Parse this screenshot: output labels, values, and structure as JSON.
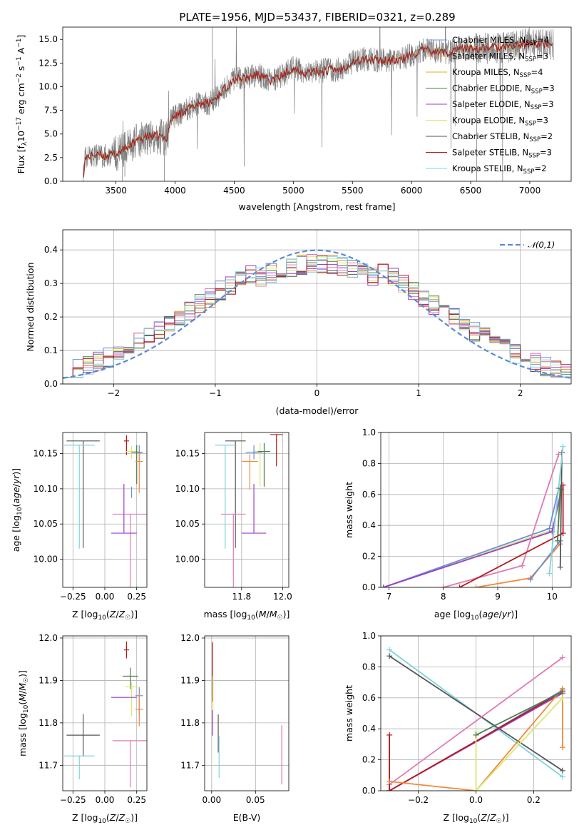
{
  "title": "PLATE=1956, MJD=53437, FIBERID=0321, z=0.289",
  "colors": {
    "chabrier_miles": "#6c8ed6",
    "salpeter_miles": "#f08a3c",
    "kroupa_miles": "#d4b52a",
    "chabrier_elodie": "#4f7a4f",
    "salpeter_elodie": "#9a3fc9",
    "kroupa_elodie": "#d8e870",
    "chabrier_stelib": "#555555",
    "salpeter_stelib": "#b51a1a",
    "kroupa_stelib": "#7fd4dc",
    "pink": "#e07ab4",
    "gauss": "#5b8ad6",
    "data": "#808080"
  },
  "chart_data": [
    {
      "type": "line",
      "id": "spectrum",
      "xlabel": "wavelength [Angstrom, rest frame]",
      "ylabel": "Flux [f_λ10^-17 erg cm^-2 s^-1 A^-1]",
      "xlim": [
        3050,
        7350
      ],
      "ylim": [
        0,
        16.3
      ],
      "xticks": [
        3500,
        4000,
        4500,
        5000,
        5500,
        6000,
        6500,
        7000
      ],
      "yticks": [
        0.0,
        2.5,
        5.0,
        7.5,
        10.0,
        12.5,
        15.0
      ],
      "spectrum_anchors": {
        "x": [
          3220,
          3240,
          3300,
          3400,
          3500,
          3560,
          3650,
          3750,
          3850,
          3930,
          3960,
          4000,
          4100,
          4200,
          4300,
          4400,
          4500,
          4600,
          4700,
          4800,
          4900,
          5000,
          5100,
          5200,
          5300,
          5400,
          5500,
          5600,
          5700,
          5800,
          5900,
          6000,
          6100,
          6200,
          6300,
          6400,
          6500,
          6600,
          6700,
          6800,
          6900,
          7000,
          7100,
          7200
        ],
        "y": [
          0.5,
          2.4,
          2.8,
          2.7,
          2.9,
          3.3,
          4.1,
          4.7,
          4.8,
          4.5,
          6.3,
          6.9,
          7.6,
          8.2,
          8.3,
          9.6,
          10.8,
          10.9,
          11.3,
          10.6,
          11.1,
          12.0,
          11.5,
          11.6,
          11.8,
          11.8,
          12.6,
          12.9,
          12.8,
          12.8,
          12.8,
          13.4,
          13.9,
          13.7,
          13.6,
          14.0,
          14.1,
          14.0,
          14.2,
          14.1,
          14.4,
          14.6,
          14.5,
          14.5
        ]
      },
      "legend": [
        {
          "label": "Chabrier MILES, N",
          "sub": "SSP",
          "eq": "=4",
          "color": "chabrier_miles"
        },
        {
          "label": "Salpeter MILES, N",
          "sub": "SSP",
          "eq": "=3",
          "color": "salpeter_miles"
        },
        {
          "label": "Kroupa MILES, N",
          "sub": "SSP",
          "eq": "=4",
          "color": "kroupa_miles"
        },
        {
          "label": "Chabrier ELODIE, N",
          "sub": "SSP",
          "eq": "=3",
          "color": "chabrier_elodie"
        },
        {
          "label": "Salpeter ELODIE, N",
          "sub": "SSP",
          "eq": "=3",
          "color": "salpeter_elodie"
        },
        {
          "label": "Kroupa ELODIE, N",
          "sub": "SSP",
          "eq": "=3",
          "color": "kroupa_elodie"
        },
        {
          "label": "Chabrier STELIB, N",
          "sub": "SSP",
          "eq": "=2",
          "color": "chabrier_stelib"
        },
        {
          "label": "Salpeter STELIB, N",
          "sub": "SSP",
          "eq": "=3",
          "color": "salpeter_stelib"
        },
        {
          "label": "Kroupa STELIB, N",
          "sub": "SSP",
          "eq": "=2",
          "color": "kroupa_stelib"
        }
      ]
    },
    {
      "type": "histogram",
      "id": "residuals",
      "xlabel": "(data-model)/error",
      "ylabel": "Normed distribution",
      "xlim": [
        -2.5,
        2.5
      ],
      "ylim": [
        0,
        0.46
      ],
      "xticks": [
        -2,
        -1,
        0,
        1,
        2
      ],
      "yticks": [
        0.0,
        0.1,
        0.2,
        0.3,
        0.4
      ],
      "bin_width": 0.1,
      "legend": "𝒩(0,1)",
      "model_colors": [
        "chabrier_miles",
        "salpeter_miles",
        "kroupa_elodie",
        "chabrier_elodie",
        "salpeter_elodie",
        "pink",
        "chabrier_stelib",
        "salpeter_stelib",
        "kroupa_stelib"
      ]
    },
    {
      "type": "errorbar",
      "id": "age_vs_Z",
      "xlabel": "Z [log10(Z/Z☉)]",
      "ylabel": "age [log10(age/yr)]",
      "xlim": [
        -0.33,
        0.33
      ],
      "ylim": [
        9.96,
        10.18
      ],
      "xticks": [
        -0.25,
        0.0,
        0.25
      ],
      "xticklabels": [
        "−0.25",
        "0.00",
        "0.25"
      ],
      "yticks": [
        10.0,
        10.05,
        10.1,
        10.15
      ],
      "yticklabels": [
        "10.00",
        "10.05",
        "10.10",
        "10.15"
      ],
      "points": [
        {
          "c": "chabrier_stelib",
          "x": -0.17,
          "xe": 0.13,
          "y": 10.168,
          "ye": 0.0,
          "yd": 0.152
        },
        {
          "c": "kroupa_stelib",
          "x": -0.2,
          "xe": 0.12,
          "y": 10.162,
          "ye": 0.0,
          "yd": 0.147
        },
        {
          "c": "salpeter_stelib",
          "x": 0.17,
          "xe": 0.02,
          "y": 10.168,
          "ye": 0.008,
          "yd": 0.02
        },
        {
          "c": "kroupa_elodie",
          "x": 0.21,
          "xe": 0.05,
          "y": 10.153,
          "ye": 0.008,
          "yd": 0.01
        },
        {
          "c": "chabrier_miles",
          "x": 0.27,
          "xe": 0.03,
          "y": 10.152,
          "ye": 0.01,
          "yd": 0.01
        },
        {
          "c": "chabrier_elodie",
          "x": 0.25,
          "xe": 0.04,
          "y": 10.152,
          "ye": 0.01,
          "yd": 0.045
        },
        {
          "c": "salpeter_miles",
          "x": 0.27,
          "xe": 0.03,
          "y": 10.139,
          "ye": 0.012,
          "yd": 0.045
        },
        {
          "c": "pink",
          "x": 0.2,
          "xe": 0.14,
          "y": 10.064,
          "ye": 0.0,
          "yd": 0.104
        },
        {
          "c": "salpeter_elodie",
          "x": 0.15,
          "xe": 0.1,
          "y": 10.037,
          "ye": 0.07,
          "yd": 0.0
        },
        {
          "c": "chabrier_miles",
          "x": 0.21,
          "xe": 0.0,
          "y": 10.095,
          "ye": 0.008,
          "yd": 0.008
        }
      ]
    },
    {
      "type": "errorbar",
      "id": "age_vs_mass",
      "xlabel": "mass [log10(M/M☉)]",
      "xlim": [
        11.62,
        12.03
      ],
      "ylim": [
        9.96,
        10.18
      ],
      "xticks": [
        11.8,
        12.0
      ],
      "xticklabels": [
        "11.8",
        "12.0"
      ],
      "yticks": [
        10.0,
        10.05,
        10.1,
        10.15
      ],
      "yticklabels": [
        "10.00",
        "10.05",
        "10.10",
        "10.15"
      ],
      "points": [
        {
          "c": "chabrier_stelib",
          "x": 11.77,
          "xe": 0.05,
          "y": 10.168,
          "ye": 0.0,
          "yd": 0.152
        },
        {
          "c": "kroupa_stelib",
          "x": 11.72,
          "xe": 0.05,
          "y": 10.162,
          "ye": 0.0,
          "yd": 0.147
        },
        {
          "c": "salpeter_stelib",
          "x": 11.97,
          "xe": 0.03,
          "y": 10.177,
          "ye": 0.0,
          "yd": 0.045
        },
        {
          "c": "kroupa_elodie",
          "x": 11.89,
          "xe": 0.03,
          "y": 10.153,
          "ye": 0.012,
          "yd": 0.05
        },
        {
          "c": "chabrier_elodie",
          "x": 11.91,
          "xe": 0.03,
          "y": 10.153,
          "ye": 0.012,
          "yd": 0.05
        },
        {
          "c": "chabrier_miles",
          "x": 11.86,
          "xe": 0.04,
          "y": 10.152,
          "ye": 0.01,
          "yd": 0.01
        },
        {
          "c": "salpeter_miles",
          "x": 11.84,
          "xe": 0.04,
          "y": 10.139,
          "ye": 0.01,
          "yd": 0.04
        },
        {
          "c": "pink",
          "x": 11.76,
          "xe": 0.06,
          "y": 10.064,
          "ye": 0.0,
          "yd": 0.104
        },
        {
          "c": "salpeter_elodie",
          "x": 11.86,
          "xe": 0.06,
          "y": 10.037,
          "ye": 0.07,
          "yd": 0.0
        }
      ]
    },
    {
      "type": "line",
      "id": "weight_vs_age",
      "xlabel": "age [log10(age/yr)]",
      "ylabel": "mass weight",
      "xlim": [
        6.85,
        10.35
      ],
      "ylim": [
        0,
        1.0
      ],
      "xticks": [
        7,
        8,
        9,
        10
      ],
      "yticks": [
        0.0,
        0.2,
        0.4,
        0.6,
        0.8,
        1.0
      ],
      "series": [
        {
          "c": "kroupa_elodie",
          "x": [
            6.9,
            10.0,
            10.17
          ],
          "y": [
            0.0,
            0.37,
            0.6
          ]
        },
        {
          "c": "chabrier_miles",
          "x": [
            6.9,
            9.95,
            10.12
          ],
          "y": [
            0.0,
            0.38,
            0.64
          ]
        },
        {
          "c": "salpeter_elodie",
          "x": [
            6.9,
            10.0,
            10.17
          ],
          "y": [
            0.0,
            0.36,
            0.63
          ]
        },
        {
          "c": "pink",
          "x": [
            8.0,
            9.45,
            10.12
          ],
          "y": [
            0.0,
            0.14,
            0.86
          ]
        },
        {
          "c": "salpeter_stelib",
          "x": [
            8.3,
            10.2
          ],
          "y": [
            0.0,
            0.35
          ]
        },
        {
          "c": "salpeter_stelib",
          "x": [
            10.2,
            10.2
          ],
          "y": [
            0.35,
            0.66
          ]
        },
        {
          "c": "salpeter_miles",
          "x": [
            8.6,
            9.6,
            10.15
          ],
          "y": [
            0.0,
            0.06,
            0.28
          ]
        },
        {
          "c": "chabrier_miles",
          "x": [
            9.6,
            10.15
          ],
          "y": [
            0.05,
            0.3
          ]
        },
        {
          "c": "chabrier_stelib",
          "x": [
            10.15,
            10.18
          ],
          "y": [
            0.13,
            0.87
          ]
        },
        {
          "c": "kroupa_stelib",
          "x": [
            9.95,
            10.2
          ],
          "y": [
            0.09,
            0.91
          ]
        },
        {
          "c": "chabrier_elodie",
          "x": [
            10.1,
            10.15
          ],
          "y": [
            0.3,
            0.64
          ]
        }
      ]
    },
    {
      "type": "errorbar",
      "id": "mass_vs_Z",
      "xlabel": "Z [log10(Z/Z☉)]",
      "ylabel": "mass [log10(M/M☉)]",
      "xlim": [
        -0.33,
        0.33
      ],
      "ylim": [
        11.64,
        12.005
      ],
      "xticks": [
        -0.25,
        0.0,
        0.25
      ],
      "xticklabels": [
        "−0.25",
        "0.00",
        "0.25"
      ],
      "yticks": [
        11.7,
        11.8,
        11.9,
        12.0
      ],
      "yticklabels": [
        "11.7",
        "11.8",
        "11.9",
        "12.0"
      ],
      "points": [
        {
          "c": "chabrier_stelib",
          "x": -0.17,
          "xe": 0.13,
          "y": 11.771,
          "ye": 0.05,
          "yd": 0.05
        },
        {
          "c": "kroupa_stelib",
          "x": -0.2,
          "xe": 0.12,
          "y": 11.722,
          "ye": 0.0,
          "yd": 0.055
        },
        {
          "c": "salpeter_stelib",
          "x": 0.17,
          "xe": 0.02,
          "y": 11.972,
          "ye": 0.02,
          "yd": 0.02
        },
        {
          "c": "chabrier_elodie",
          "x": 0.2,
          "xe": 0.06,
          "y": 11.91,
          "ye": 0.02,
          "yd": 0.03
        },
        {
          "c": "kroupa_elodie",
          "x": 0.21,
          "xe": 0.05,
          "y": 11.885,
          "ye": 0.01,
          "yd": 0.07
        },
        {
          "c": "chabrier_miles",
          "x": 0.27,
          "xe": 0.03,
          "y": 11.864,
          "ye": 0.02,
          "yd": 0.05
        },
        {
          "c": "salpeter_elodie",
          "x": 0.15,
          "xe": 0.1,
          "y": 11.86,
          "ye": 0.0,
          "yd": 0.0
        },
        {
          "c": "salpeter_miles",
          "x": 0.27,
          "xe": 0.03,
          "y": 11.832,
          "ye": 0.04,
          "yd": 0.04
        },
        {
          "c": "pink",
          "x": 0.2,
          "xe": 0.14,
          "y": 11.758,
          "ye": 0.0,
          "yd": 0.11
        }
      ]
    },
    {
      "type": "errorbar",
      "id": "mass_vs_ebv",
      "xlabel": "E(B-V)",
      "xlim": [
        -0.008,
        0.088
      ],
      "ylim": [
        11.64,
        12.005
      ],
      "xticks": [
        0.0,
        0.05
      ],
      "xticklabels": [
        "0.00",
        "0.05"
      ],
      "yticks": [
        11.7,
        11.8,
        11.9,
        12.0
      ],
      "yticklabels": [
        "11.7",
        "11.8",
        "11.9",
        "12.0"
      ],
      "vlines": [
        {
          "c": "salpeter_stelib",
          "x": 0.001,
          "y0": 11.85,
          "y1": 11.99
        },
        {
          "c": "kroupa_elodie",
          "x": 0.0015,
          "y0": 11.83,
          "y1": 11.91
        },
        {
          "c": "salpeter_elodie",
          "x": 0.001,
          "y0": 11.77,
          "y1": 11.83
        },
        {
          "c": "chabrier_stelib",
          "x": 0.0075,
          "y0": 11.73,
          "y1": 11.82
        },
        {
          "c": "kroupa_stelib",
          "x": 0.0085,
          "y0": 11.67,
          "y1": 11.77
        },
        {
          "c": "pink",
          "x": 0.08,
          "y0": 11.655,
          "y1": 11.795
        }
      ]
    },
    {
      "type": "line",
      "id": "weight_vs_Z",
      "xlabel": "Z [log10(Z/Z☉)]",
      "ylabel": "mass weight",
      "xlim": [
        -0.33,
        0.33
      ],
      "ylim": [
        0,
        1.0
      ],
      "xticks": [
        -0.2,
        0.0,
        0.2
      ],
      "xticklabels": [
        "−0.2",
        "0.0",
        "0.2"
      ],
      "yticks": [
        0.0,
        0.2,
        0.4,
        0.6,
        0.8,
        1.0
      ],
      "series": [
        {
          "c": "kroupa_stelib",
          "x": [
            -0.3,
            0.3
          ],
          "y": [
            0.91,
            0.09
          ]
        },
        {
          "c": "chabrier_stelib",
          "x": [
            -0.3,
            0.3
          ],
          "y": [
            0.87,
            0.13
          ]
        },
        {
          "c": "pink",
          "x": [
            -0.3,
            0.3
          ],
          "y": [
            0.04,
            0.86
          ]
        },
        {
          "c": "chabrier_miles",
          "x": [
            -0.3,
            0.0,
            0.3
          ],
          "y": [
            0.0,
            0.32,
            0.65
          ]
        },
        {
          "c": "salpeter_elodie",
          "x": [
            -0.3,
            0.3
          ],
          "y": [
            0.0,
            0.63
          ]
        },
        {
          "c": "salpeter_stelib",
          "x": [
            -0.3,
            -0.3,
            0.3
          ],
          "y": [
            0.36,
            0.0,
            0.64
          ]
        },
        {
          "c": "salpeter_miles",
          "x": [
            -0.3,
            0.0,
            0.3,
            0.3
          ],
          "y": [
            0.06,
            0.0,
            0.66,
            0.28
          ]
        },
        {
          "c": "kroupa_elodie",
          "x": [
            0.0,
            0.0,
            0.3
          ],
          "y": [
            0.38,
            0.0,
            0.6
          ]
        },
        {
          "c": "chabrier_elodie",
          "x": [
            0.0,
            0.3
          ],
          "y": [
            0.36,
            0.64
          ]
        }
      ]
    }
  ]
}
